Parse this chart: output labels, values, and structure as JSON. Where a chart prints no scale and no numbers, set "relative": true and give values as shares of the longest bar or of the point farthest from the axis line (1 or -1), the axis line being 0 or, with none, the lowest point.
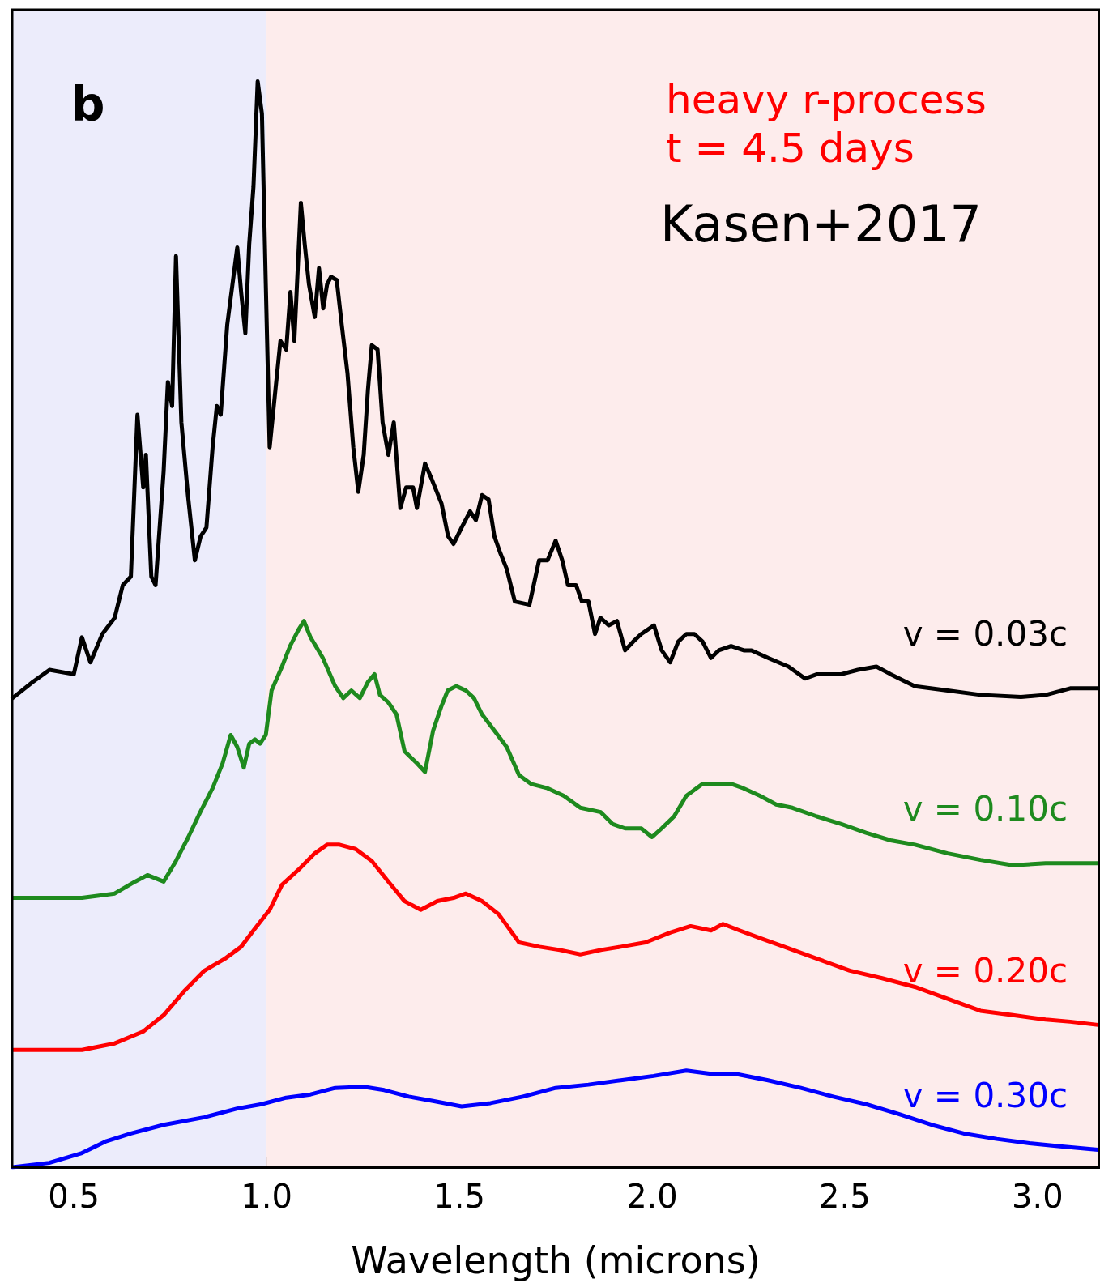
{
  "chart_data": {
    "type": "line",
    "relative": true,
    "xlabel": "Wavelength (microns)",
    "xlim": [
      0.34,
      3.16
    ],
    "xticks": [
      0.5,
      {
        "value": 1,
        "label": "1.0"
      },
      1.5,
      {
        "value": 2,
        "label": "2.0"
      },
      2.5,
      {
        "value": 3,
        "label": "3.0"
      }
    ],
    "legend": false,
    "marker": "none",
    "line_style": "solid",
    "annotations": [
      "b",
      "heavy r-process",
      "t = 4.5 days",
      "Kasen+2017"
    ],
    "bands": [
      {
        "axis": "x",
        "from": 0.34,
        "to": 1.0,
        "color": "#ececfb"
      },
      {
        "axis": "x",
        "from": 1.0,
        "to": 3.16,
        "color": "#fdecec"
      }
    ],
    "series": [
      {
        "name": "v = 0.03c",
        "color": "#000000",
        "x": [
          0.341,
          0.394,
          0.437,
          0.5,
          0.521,
          0.543,
          0.574,
          0.606,
          0.627,
          0.648,
          0.665,
          0.68,
          0.687,
          0.701,
          0.712,
          0.733,
          0.744,
          0.755,
          0.765,
          0.779,
          0.796,
          0.814,
          0.829,
          0.844,
          0.86,
          0.871,
          0.881,
          0.898,
          0.909,
          0.924,
          0.934,
          0.945,
          0.955,
          0.966,
          0.977,
          0.988,
          0.998,
          1.008,
          1.023,
          1.036,
          1.051,
          1.062,
          1.072,
          1.089,
          1.099,
          1.11,
          1.125,
          1.136,
          1.147,
          1.157,
          1.167,
          1.182,
          1.195,
          1.21,
          1.225,
          1.238,
          1.252,
          1.263,
          1.273,
          1.288,
          1.301,
          1.316,
          1.33,
          1.347,
          1.362,
          1.38,
          1.39,
          1.411,
          1.428,
          1.454,
          1.471,
          1.485,
          1.506,
          1.528,
          1.543,
          1.559,
          1.576,
          1.591,
          1.606,
          1.623,
          1.644,
          1.682,
          1.707,
          1.729,
          1.75,
          1.767,
          1.782,
          1.803,
          1.818,
          1.835,
          1.852,
          1.866,
          1.888,
          1.909,
          1.93,
          1.951,
          1.972,
          2.005,
          2.025,
          2.047,
          2.068,
          2.089,
          2.11,
          2.131,
          2.153,
          2.173,
          2.205,
          2.238,
          2.258,
          2.301,
          2.354,
          2.397,
          2.428,
          2.491,
          2.534,
          2.582,
          2.619,
          2.682,
          2.767,
          2.852,
          2.957,
          3.022,
          3.085,
          3.157
        ],
        "values": [
          0.432,
          0.447,
          0.458,
          0.454,
          0.488,
          0.465,
          0.491,
          0.506,
          0.536,
          0.544,
          0.693,
          0.626,
          0.656,
          0.544,
          0.536,
          0.641,
          0.723,
          0.701,
          0.839,
          0.686,
          0.619,
          0.559,
          0.581,
          0.589,
          0.663,
          0.701,
          0.693,
          0.776,
          0.806,
          0.847,
          0.806,
          0.768,
          0.85,
          0.903,
          1.0,
          0.97,
          0.813,
          0.663,
          0.716,
          0.761,
          0.753,
          0.806,
          0.761,
          0.888,
          0.85,
          0.813,
          0.783,
          0.828,
          0.791,
          0.813,
          0.82,
          0.817,
          0.776,
          0.731,
          0.663,
          0.622,
          0.656,
          0.716,
          0.757,
          0.753,
          0.686,
          0.656,
          0.686,
          0.607,
          0.626,
          0.626,
          0.607,
          0.648,
          0.634,
          0.611,
          0.581,
          0.574,
          0.589,
          0.604,
          0.596,
          0.619,
          0.615,
          0.581,
          0.566,
          0.551,
          0.521,
          0.518,
          0.559,
          0.559,
          0.577,
          0.559,
          0.536,
          0.536,
          0.521,
          0.521,
          0.491,
          0.506,
          0.499,
          0.503,
          0.476,
          0.484,
          0.491,
          0.499,
          0.476,
          0.465,
          0.484,
          0.491,
          0.491,
          0.484,
          0.469,
          0.476,
          0.48,
          0.476,
          0.476,
          0.469,
          0.461,
          0.45,
          0.454,
          0.454,
          0.458,
          0.461,
          0.454,
          0.443,
          0.439,
          0.435,
          0.433,
          0.435,
          0.441,
          0.441
        ]
      },
      {
        "name": "v = 0.10c",
        "color": "#1e8a1e",
        "x": [
          0.341,
          0.521,
          0.606,
          0.659,
          0.691,
          0.733,
          0.765,
          0.797,
          0.828,
          0.86,
          0.886,
          0.907,
          0.924,
          0.941,
          0.955,
          0.97,
          0.983,
          0.998,
          1.013,
          1.04,
          1.061,
          1.083,
          1.097,
          1.114,
          1.146,
          1.178,
          1.199,
          1.22,
          1.242,
          1.263,
          1.28,
          1.294,
          1.316,
          1.337,
          1.358,
          1.39,
          1.411,
          1.432,
          1.453,
          1.47,
          1.492,
          1.517,
          1.538,
          1.559,
          1.591,
          1.623,
          1.655,
          1.686,
          1.729,
          1.771,
          1.814,
          1.867,
          1.898,
          1.93,
          1.972,
          2.0,
          2.025,
          2.057,
          2.089,
          2.131,
          2.174,
          2.206,
          2.237,
          2.28,
          2.322,
          2.364,
          2.428,
          2.491,
          2.555,
          2.619,
          2.682,
          2.767,
          2.852,
          2.936,
          3.021,
          3.085,
          3.157
        ],
        "values": [
          0.248,
          0.248,
          0.252,
          0.263,
          0.269,
          0.263,
          0.282,
          0.304,
          0.327,
          0.349,
          0.372,
          0.398,
          0.387,
          0.368,
          0.39,
          0.394,
          0.39,
          0.398,
          0.439,
          0.461,
          0.48,
          0.495,
          0.503,
          0.488,
          0.469,
          0.443,
          0.432,
          0.439,
          0.432,
          0.447,
          0.454,
          0.435,
          0.428,
          0.417,
          0.383,
          0.372,
          0.364,
          0.402,
          0.424,
          0.439,
          0.443,
          0.439,
          0.432,
          0.417,
          0.402,
          0.387,
          0.361,
          0.353,
          0.349,
          0.342,
          0.331,
          0.327,
          0.316,
          0.312,
          0.312,
          0.304,
          0.312,
          0.323,
          0.342,
          0.353,
          0.353,
          0.353,
          0.349,
          0.342,
          0.334,
          0.331,
          0.323,
          0.316,
          0.308,
          0.301,
          0.297,
          0.289,
          0.283,
          0.278,
          0.28,
          0.28,
          0.28
        ]
      },
      {
        "name": "v = 0.20c",
        "color": "#ff0000",
        "x": [
          0.341,
          0.521,
          0.606,
          0.68,
          0.733,
          0.786,
          0.839,
          0.892,
          0.934,
          0.966,
          1.008,
          1.04,
          1.083,
          1.125,
          1.157,
          1.189,
          1.231,
          1.273,
          1.316,
          1.358,
          1.4,
          1.443,
          1.485,
          1.517,
          1.559,
          1.602,
          1.655,
          1.708,
          1.761,
          1.814,
          1.867,
          1.919,
          1.983,
          2.047,
          2.1,
          2.153,
          2.184,
          2.227,
          2.28,
          2.343,
          2.428,
          2.513,
          2.597,
          2.682,
          2.767,
          2.852,
          2.936,
          3.021,
          3.085,
          3.157
        ],
        "values": [
          0.108,
          0.108,
          0.114,
          0.125,
          0.14,
          0.162,
          0.181,
          0.192,
          0.203,
          0.218,
          0.237,
          0.26,
          0.274,
          0.289,
          0.297,
          0.297,
          0.293,
          0.282,
          0.263,
          0.245,
          0.237,
          0.245,
          0.248,
          0.252,
          0.245,
          0.233,
          0.207,
          0.203,
          0.2,
          0.196,
          0.2,
          0.203,
          0.207,
          0.216,
          0.222,
          0.218,
          0.224,
          0.218,
          0.211,
          0.203,
          0.192,
          0.181,
          0.174,
          0.166,
          0.155,
          0.144,
          0.14,
          0.136,
          0.134,
          0.131
        ]
      },
      {
        "name": "v = 0.30c",
        "color": "#0000ff",
        "x": [
          0.341,
          0.436,
          0.521,
          0.585,
          0.648,
          0.733,
          0.839,
          0.924,
          0.987,
          1.051,
          1.114,
          1.178,
          1.252,
          1.305,
          1.369,
          1.432,
          1.506,
          1.581,
          1.665,
          1.75,
          1.835,
          1.919,
          2.004,
          2.089,
          2.153,
          2.216,
          2.301,
          2.386,
          2.47,
          2.555,
          2.64,
          2.725,
          2.809,
          2.894,
          2.979,
          3.064,
          3.157
        ],
        "values": [
          0,
          0.004,
          0.013,
          0.024,
          0.031,
          0.039,
          0.046,
          0.054,
          0.058,
          0.064,
          0.067,
          0.073,
          0.074,
          0.071,
          0.065,
          0.061,
          0.056,
          0.059,
          0.065,
          0.073,
          0.076,
          0.08,
          0.084,
          0.089,
          0.086,
          0.086,
          0.08,
          0.073,
          0.065,
          0.058,
          0.049,
          0.039,
          0.031,
          0.026,
          0.022,
          0.019,
          0.016
        ]
      }
    ]
  }
}
